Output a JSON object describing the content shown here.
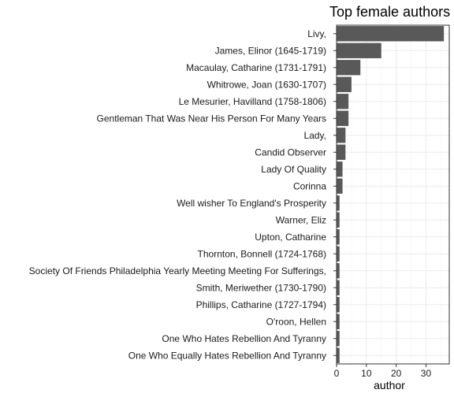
{
  "chart_data": {
    "type": "bar",
    "orientation": "horizontal",
    "title": "Top female authors",
    "xlabel": "author",
    "ylabel": "",
    "categories": [
      "Livy, ",
      "James, Elinor (1645-1719)",
      "Macaulay, Catharine (1731-1791)",
      "Whitrowe, Joan (1630-1707)",
      "Le Mesurier, Havilland (1758-1806)",
      "Gentleman That Was Near His Person For Many Years",
      "Lady, ",
      "Candid Observer",
      "Lady Of Quality",
      "Corinna",
      "Well wisher To England's Prosperity",
      "Warner, Eliz",
      "Upton, Catharine",
      "Thornton, Bonnell (1724-1768)",
      "Society Of Friends Philadelphia Yearly Meeting Meeting For Sufferings, ",
      "Smith, Meriwether (1730-1790)",
      "Phillips, Catharine (1727-1794)",
      "O'roon, Hellen",
      "One Who Hates Rebellion And Tyranny",
      "One Who Equally Hates Rebellion And Tyranny"
    ],
    "values": [
      36,
      15,
      8,
      5,
      4,
      4,
      3,
      3,
      2,
      2,
      1,
      1,
      1,
      1,
      1,
      1,
      1,
      1,
      1,
      1
    ],
    "xlim": [
      0,
      37.8
    ],
    "xticks": [
      0,
      10,
      20,
      30
    ],
    "grid": true,
    "legend": "none",
    "colors": {
      "bar": "#595959",
      "panel_background": "#ffffff",
      "panel_border": "#333333",
      "grid_major": "#ebebeb",
      "grid_minor": "#f5f5f5",
      "text": "#1a1a1a"
    }
  }
}
